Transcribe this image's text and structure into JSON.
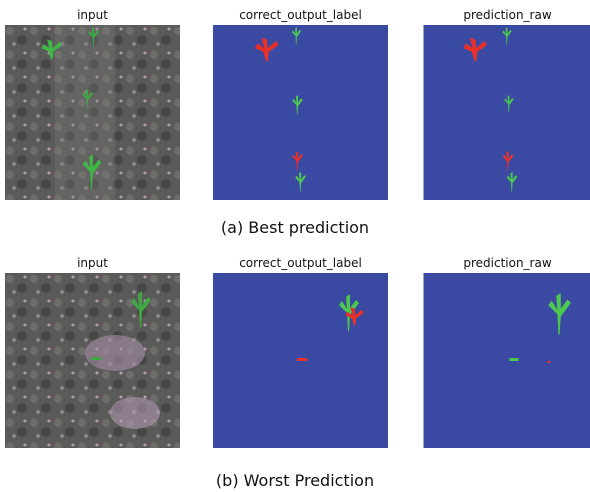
{
  "rows": [
    {
      "panels": [
        "input",
        "correct_output_label",
        "prediction_raw"
      ],
      "caption": "(a) Best prediction"
    },
    {
      "panels": [
        "input",
        "correct_output_label",
        "prediction_raw"
      ],
      "caption": "(b) Worst Prediction"
    }
  ]
}
